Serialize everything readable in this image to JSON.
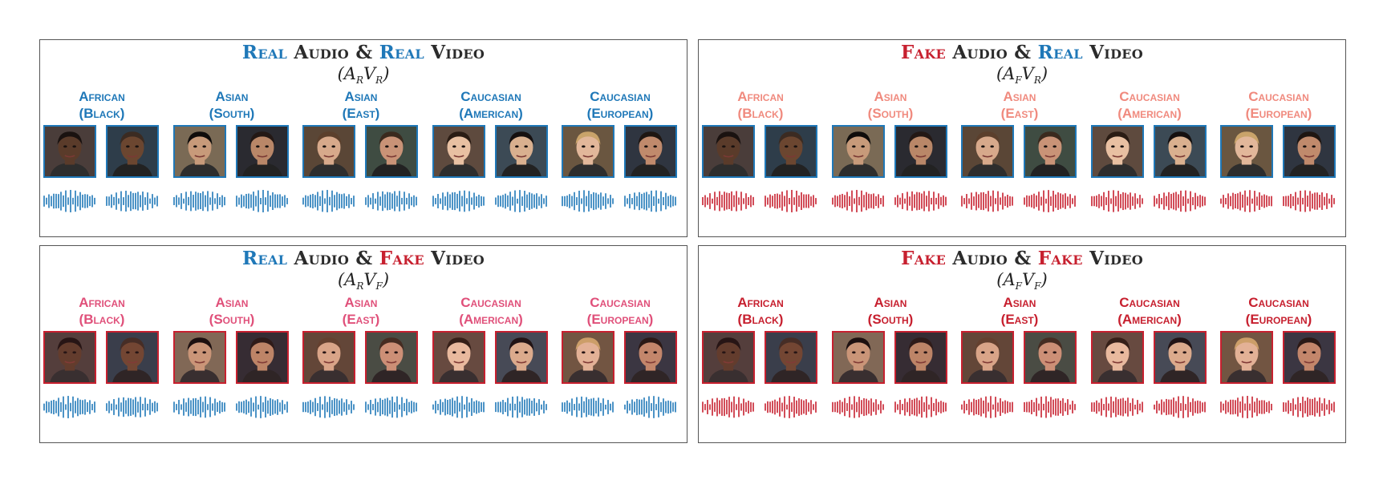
{
  "panels": [
    {
      "id": "real-audio-real-video",
      "title": {
        "audio_kind": "Real",
        "audio_word": "Audio",
        "amp": "&",
        "video_kind": "Real",
        "video_word": "Video"
      },
      "title_colors": {
        "audio": "#1f78b8",
        "video": "#1f78b8"
      },
      "subtitle": {
        "a": "A",
        "a_sub": "R",
        "v": "V",
        "v_sub": "R"
      },
      "label_color": "#1f78b8",
      "border_color": "#1f78b8",
      "wave_color": "#1f78b8",
      "groups": [
        {
          "line1": "African",
          "line2": "(Black)"
        },
        {
          "line1": "Asian",
          "line2": "(South)"
        },
        {
          "line1": "Asian",
          "line2": "(East)"
        },
        {
          "line1": "Caucasian",
          "line2": "(American)"
        },
        {
          "line1": "Caucasian",
          "line2": "(European)"
        }
      ]
    },
    {
      "id": "fake-audio-real-video",
      "title": {
        "audio_kind": "Fake",
        "audio_word": "Audio",
        "amp": "&",
        "video_kind": "Real",
        "video_word": "Video"
      },
      "title_colors": {
        "audio": "#c7202f",
        "video": "#1f78b8"
      },
      "subtitle": {
        "a": "A",
        "a_sub": "F",
        "v": "V",
        "v_sub": "R"
      },
      "label_color": "#f08a7e",
      "border_color": "#1f78b8",
      "wave_color": "#c7202f",
      "groups": [
        {
          "line1": "African",
          "line2": "(Black)"
        },
        {
          "line1": "Asian",
          "line2": "(South)"
        },
        {
          "line1": "Asian",
          "line2": "(East)"
        },
        {
          "line1": "Caucasian",
          "line2": "(American)"
        },
        {
          "line1": "Caucasian",
          "line2": "(European)"
        }
      ]
    },
    {
      "id": "real-audio-fake-video",
      "title": {
        "audio_kind": "Real",
        "audio_word": "Audio",
        "amp": "&",
        "video_kind": "Fake",
        "video_word": "Video"
      },
      "title_colors": {
        "audio": "#1f78b8",
        "video": "#c7202f"
      },
      "subtitle": {
        "a": "A",
        "a_sub": "R",
        "v": "V",
        "v_sub": "F"
      },
      "label_color": "#e0507a",
      "border_color": "#c7202f",
      "wave_color": "#1f78b8",
      "groups": [
        {
          "line1": "African",
          "line2": "(Black)"
        },
        {
          "line1": "Asian",
          "line2": "(South)"
        },
        {
          "line1": "Asian",
          "line2": "(East)"
        },
        {
          "line1": "Caucasian",
          "line2": "(American)"
        },
        {
          "line1": "Caucasian",
          "line2": "(European)"
        }
      ]
    },
    {
      "id": "fake-audio-fake-video",
      "title": {
        "audio_kind": "Fake",
        "audio_word": "Audio",
        "amp": "&",
        "video_kind": "Fake",
        "video_word": "Video"
      },
      "title_colors": {
        "audio": "#c7202f",
        "video": "#c7202f"
      },
      "subtitle": {
        "a": "A",
        "a_sub": "F",
        "v": "V",
        "v_sub": "F"
      },
      "label_color": "#c7202f",
      "border_color": "#c7202f",
      "wave_color": "#c7202f",
      "groups": [
        {
          "line1": "African",
          "line2": "(Black)"
        },
        {
          "line1": "Asian",
          "line2": "(South)"
        },
        {
          "line1": "Asian",
          "line2": "(East)"
        },
        {
          "line1": "Caucasian",
          "line2": "(American)"
        },
        {
          "line1": "Caucasian",
          "line2": "(European)"
        }
      ]
    }
  ]
}
